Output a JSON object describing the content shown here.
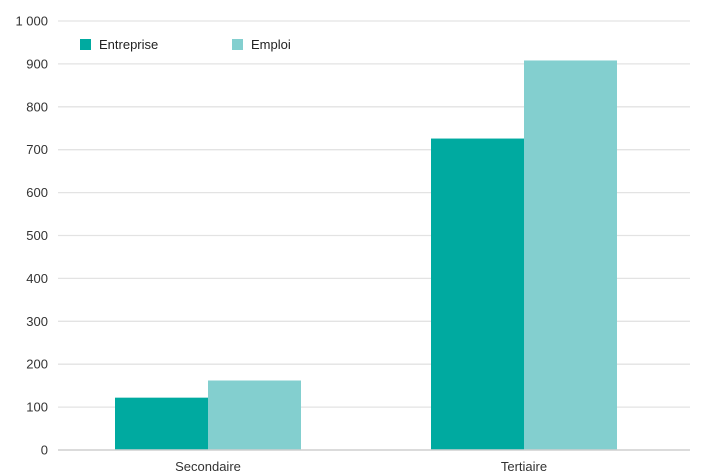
{
  "chart_data": {
    "type": "bar",
    "title": "",
    "xlabel": "",
    "ylabel": "",
    "categories": [
      "Secondaire",
      "Tertiaire"
    ],
    "series": [
      {
        "name": "Entreprise",
        "values": [
          122,
          726
        ],
        "color": "#00aaa0"
      },
      {
        "name": "Emploi",
        "values": [
          162,
          908
        ],
        "color": "#83cfcf"
      }
    ],
    "ylim": [
      0,
      1000
    ],
    "yticks": [
      0,
      100,
      200,
      300,
      400,
      500,
      600,
      700,
      800,
      900,
      1000
    ],
    "ytick_labels": [
      "0",
      "100",
      "200",
      "300",
      "400",
      "500",
      "600",
      "700",
      "800",
      "900",
      "1 000"
    ],
    "grid": true,
    "legend_position": "top-left"
  }
}
